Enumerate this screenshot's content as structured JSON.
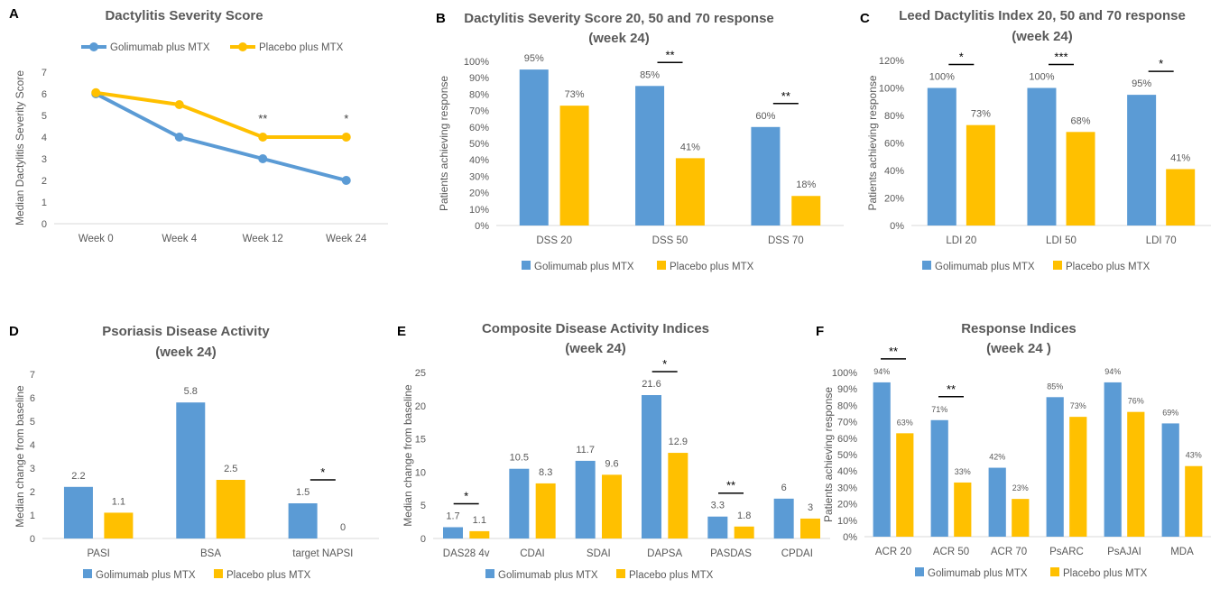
{
  "colors": {
    "golimumab": "#5B9BD5",
    "placebo": "#FFC000",
    "axis_text": "#595959",
    "title_text": "#595959"
  },
  "series_names": [
    "Golimumab plus MTX",
    "Placebo plus MTX"
  ],
  "chart_data": [
    {
      "panel": "A",
      "type": "line",
      "title": "Dactylitis Severity Score",
      "ylabel": "Median Dactylitis Severity Score",
      "categories": [
        "Week 0",
        "Week 4",
        "Week 12",
        "Week 24"
      ],
      "ylim": [
        0,
        7
      ],
      "yticks": [
        "0",
        "1",
        "2",
        "3",
        "4",
        "5",
        "6",
        "7"
      ],
      "series": [
        {
          "name": "Golimumab plus MTX",
          "values": [
            6,
            4,
            3,
            2
          ]
        },
        {
          "name": "Placebo plus MTX",
          "values": [
            6.05,
            5.5,
            4,
            4
          ]
        }
      ],
      "significance": [
        {
          "category": 2,
          "label": "**"
        },
        {
          "category": 3,
          "label": "*"
        }
      ],
      "legend": "top"
    },
    {
      "panel": "B",
      "type": "bar",
      "title": "Dactylitis Severity Score 20, 50 and 70 response",
      "subtitle": "(week 24)",
      "ylabel": "Patients achieving response",
      "categories": [
        "DSS 20",
        "DSS 50",
        "DSS 70"
      ],
      "ylim": [
        0,
        100
      ],
      "yticks": [
        "0%",
        "10%",
        "20%",
        "30%",
        "40%",
        "50%",
        "60%",
        "70%",
        "80%",
        "90%",
        "100%"
      ],
      "series": [
        {
          "name": "Golimumab plus MTX",
          "values": [
            95,
            85,
            60
          ],
          "labels": [
            "95%",
            "85%",
            "60%"
          ]
        },
        {
          "name": "Placebo plus MTX",
          "values": [
            73,
            41,
            18
          ],
          "labels": [
            "73%",
            "41%",
            "18%"
          ]
        }
      ],
      "significance": [
        {
          "category": 1,
          "label": "**"
        },
        {
          "category": 2,
          "label": "**"
        }
      ],
      "legend": "bottom"
    },
    {
      "panel": "C",
      "type": "bar",
      "title": "Leed Dactylitis Index 20, 50 and 70 response",
      "subtitle": "(week 24)",
      "ylabel": "Patients achieving response",
      "categories": [
        "LDI 20",
        "LDI 50",
        "LDI 70"
      ],
      "ylim": [
        0,
        120
      ],
      "yticks": [
        "0%",
        "20%",
        "40%",
        "60%",
        "80%",
        "100%",
        "120%"
      ],
      "series": [
        {
          "name": "Golimumab plus MTX",
          "values": [
            100,
            100,
            95
          ],
          "labels": [
            "100%",
            "100%",
            "95%"
          ]
        },
        {
          "name": "Placebo plus MTX",
          "values": [
            73,
            68,
            41
          ],
          "labels": [
            "73%",
            "68%",
            "41%"
          ]
        }
      ],
      "significance": [
        {
          "category": 0,
          "label": "*"
        },
        {
          "category": 1,
          "label": "***"
        },
        {
          "category": 2,
          "label": "*"
        }
      ],
      "legend": "bottom"
    },
    {
      "panel": "D",
      "type": "bar",
      "title": "Psoriasis Disease Activity",
      "subtitle": "(week 24)",
      "ylabel": "Median change from baseline",
      "categories": [
        "PASI",
        "BSA",
        "target NAPSI"
      ],
      "ylim": [
        0,
        7
      ],
      "yticks": [
        "0",
        "1",
        "2",
        "3",
        "4",
        "5",
        "6",
        "7"
      ],
      "series": [
        {
          "name": "Golimumab plus MTX",
          "values": [
            2.2,
            5.8,
            1.5
          ],
          "labels": [
            "2.2",
            "5.8",
            "1.5"
          ]
        },
        {
          "name": "Placebo plus MTX",
          "values": [
            1.1,
            2.5,
            0
          ],
          "labels": [
            "1.1",
            "2.5",
            "0"
          ]
        }
      ],
      "significance": [
        {
          "category": 2,
          "label": "*"
        }
      ],
      "legend": "bottom"
    },
    {
      "panel": "E",
      "type": "bar",
      "title": "Composite Disease Activity Indices",
      "subtitle": "(week 24)",
      "ylabel": "Median change from baseline",
      "categories": [
        "DAS28 4v",
        "CDAI",
        "SDAI",
        "DAPSA",
        "PASDAS",
        "CPDAI"
      ],
      "ylim": [
        0,
        25
      ],
      "yticks": [
        "0",
        "5",
        "10",
        "15",
        "20",
        "25"
      ],
      "series": [
        {
          "name": "Golimumab plus MTX",
          "values": [
            1.7,
            10.5,
            11.7,
            21.6,
            3.3,
            6
          ],
          "labels": [
            "1.7",
            "10.5",
            "11.7",
            "21.6",
            "3.3",
            "6"
          ]
        },
        {
          "name": "Placebo plus MTX",
          "values": [
            1.1,
            8.3,
            9.6,
            12.9,
            1.8,
            3
          ],
          "labels": [
            "1.1",
            "8.3",
            "9.6",
            "12.9",
            "1.8",
            "3"
          ]
        }
      ],
      "significance": [
        {
          "category": 0,
          "label": "*"
        },
        {
          "category": 3,
          "label": "*"
        },
        {
          "category": 4,
          "label": "**"
        }
      ],
      "legend": "bottom"
    },
    {
      "panel": "F",
      "type": "bar",
      "title": "Response Indices",
      "subtitle": "(week 24 )",
      "ylabel": "Patients achieving response",
      "categories": [
        "ACR 20",
        "ACR 50",
        "ACR 70",
        "PsARC",
        "PsAJAI",
        "MDA"
      ],
      "ylim": [
        0,
        100
      ],
      "yticks": [
        "0%",
        "10%",
        "20%",
        "30%",
        "40%",
        "50%",
        "60%",
        "70%",
        "80%",
        "90%",
        "100%"
      ],
      "series": [
        {
          "name": "Golimumab plus MTX",
          "values": [
            94,
            71,
            42,
            85,
            94,
            69
          ],
          "labels": [
            "94%",
            "71%",
            "42%",
            "85%",
            "94%",
            "69%"
          ]
        },
        {
          "name": "Placebo plus MTX",
          "values": [
            63,
            33,
            23,
            73,
            76,
            43
          ],
          "labels": [
            "63%",
            "33%",
            "23%",
            "73%",
            "76%",
            "43%"
          ]
        }
      ],
      "significance": [
        {
          "category": 0,
          "label": "**"
        },
        {
          "category": 1,
          "label": "**"
        }
      ],
      "legend": "bottom"
    }
  ]
}
